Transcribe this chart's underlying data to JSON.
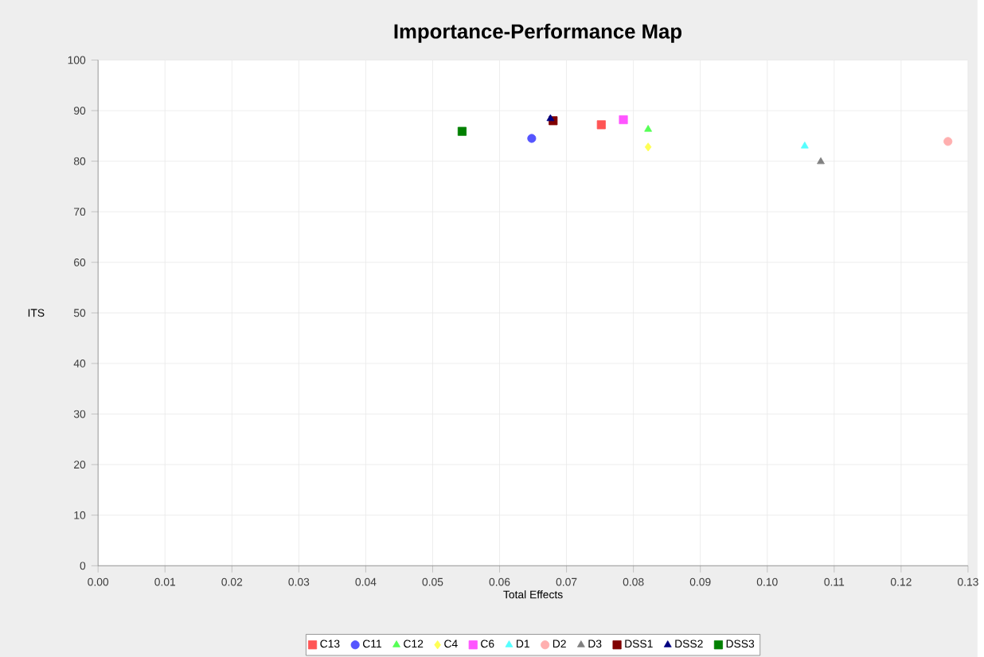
{
  "chart_data": {
    "type": "scatter",
    "title": "Importance-Performance Map",
    "xlabel": "Total Effects",
    "ylabel": "ITS",
    "xlim": [
      0,
      0.13
    ],
    "ylim": [
      0,
      100
    ],
    "xticks": [
      {
        "value": 0,
        "label": "0.00"
      },
      {
        "value": 0.01,
        "label": "0.01"
      },
      {
        "value": 0.02,
        "label": "0.02"
      },
      {
        "value": 0.03,
        "label": "0.03"
      },
      {
        "value": 0.04,
        "label": "0.04"
      },
      {
        "value": 0.05,
        "label": "0.05"
      },
      {
        "value": 0.06,
        "label": "0.06"
      },
      {
        "value": 0.07,
        "label": "0.07"
      },
      {
        "value": 0.08,
        "label": "0.08"
      },
      {
        "value": 0.09,
        "label": "0.09"
      },
      {
        "value": 0.1,
        "label": "0.10"
      },
      {
        "value": 0.11,
        "label": "0.11"
      },
      {
        "value": 0.12,
        "label": "0.12"
      },
      {
        "value": 0.13,
        "label": "0.13"
      }
    ],
    "yticks": [
      0,
      10,
      20,
      30,
      40,
      50,
      60,
      70,
      80,
      90,
      100
    ],
    "grid": true,
    "legend": "bottom",
    "series": [
      {
        "name": "C13",
        "color": "#ff5555",
        "marker": "square",
        "x": [
          0.0752
        ],
        "values": [
          87.2
        ]
      },
      {
        "name": "C11",
        "color": "#5555ff",
        "marker": "circle",
        "x": [
          0.0648
        ],
        "values": [
          84.5
        ]
      },
      {
        "name": "C12",
        "color": "#55ff55",
        "marker": "triangle",
        "x": [
          0.0822
        ],
        "values": [
          86.3
        ]
      },
      {
        "name": "C4",
        "color": "#ffff55",
        "marker": "diamond",
        "x": [
          0.0822
        ],
        "values": [
          82.8
        ]
      },
      {
        "name": "C6",
        "color": "#ff55ff",
        "marker": "square",
        "x": [
          0.0785
        ],
        "values": [
          88.2
        ]
      },
      {
        "name": "D1",
        "color": "#55ffff",
        "marker": "triangle",
        "x": [
          0.1056
        ],
        "values": [
          83.0
        ]
      },
      {
        "name": "D2",
        "color": "#ffafaf",
        "marker": "circle",
        "x": [
          0.127
        ],
        "values": [
          83.9
        ]
      },
      {
        "name": "D3",
        "color": "#808080",
        "marker": "triangle",
        "x": [
          0.108
        ],
        "values": [
          79.9
        ]
      },
      {
        "name": "DSS1",
        "color": "#800000",
        "marker": "square",
        "x": [
          0.068
        ],
        "values": [
          88.0
        ]
      },
      {
        "name": "DSS2",
        "color": "#000080",
        "marker": "triangle",
        "x": [
          0.0676
        ],
        "values": [
          88.4
        ]
      },
      {
        "name": "DSS3",
        "color": "#008000",
        "marker": "square",
        "x": [
          0.0544
        ],
        "values": [
          85.9
        ]
      }
    ]
  }
}
